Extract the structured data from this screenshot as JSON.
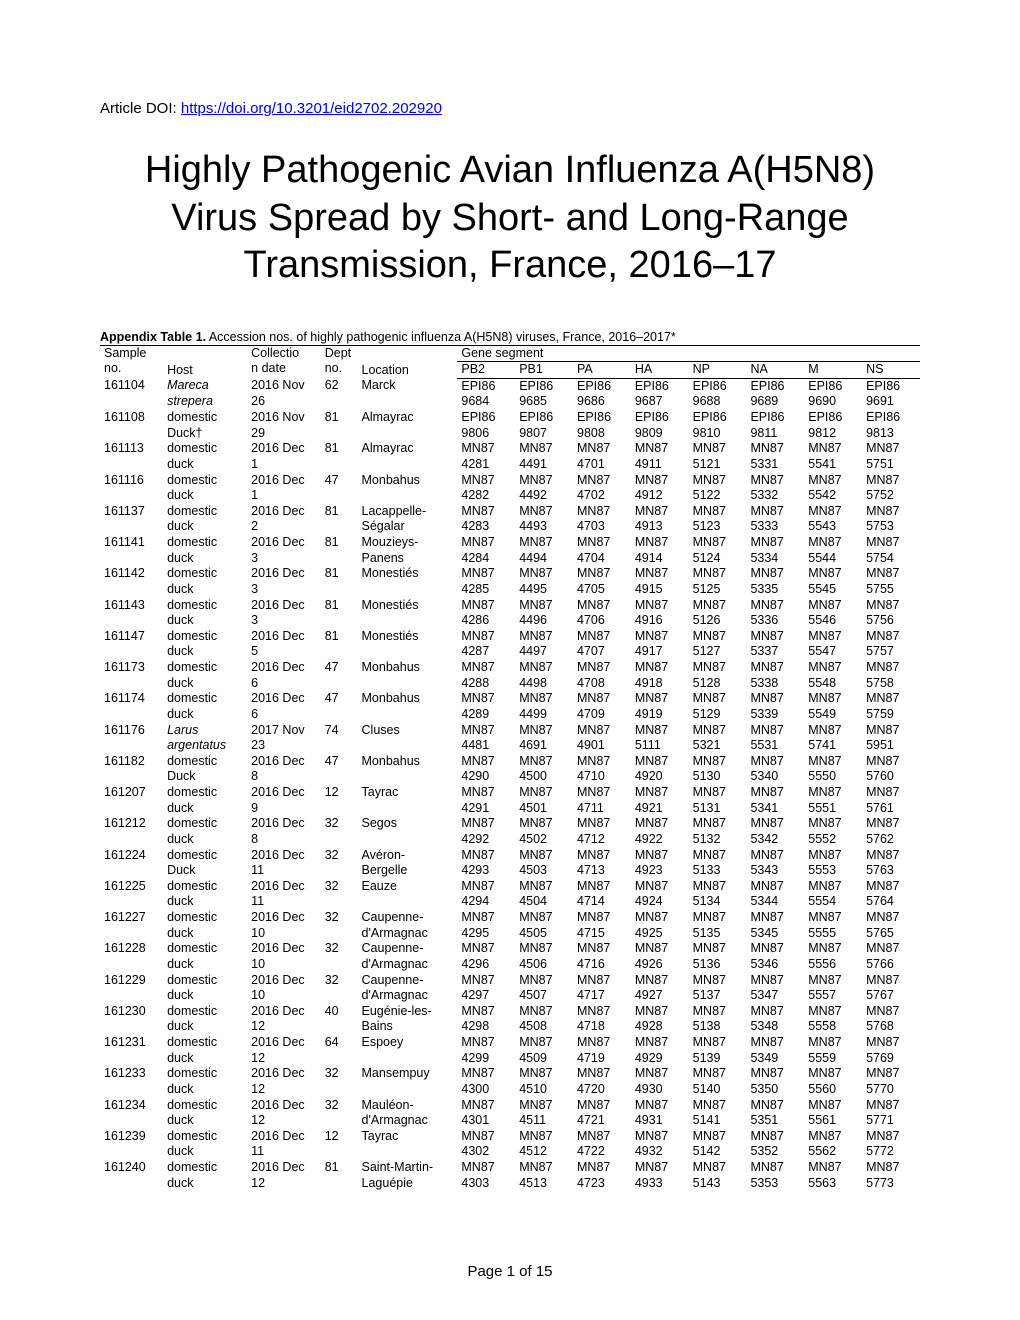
{
  "doi_label": "Article DOI:",
  "doi_link_text": "https://doi.org/10.3201/eid2702.202920",
  "title": "Highly Pathogenic Avian Influenza A(H5N8) Virus Spread by Short- and Long-Range Transmission, France, 2016–17",
  "caption_bold": "Appendix Table 1.",
  "caption_rest": " Accession nos. of highly pathogenic influenza A(H5N8) viruses, France, 2016–2017*",
  "group_headers": {
    "sample": "Sample no.",
    "host": "Host",
    "date": "Collection date",
    "dept": "Dept no.",
    "location": "Location",
    "segment": "Gene segment"
  },
  "segment_cols": [
    "PB2",
    "PB1",
    "PA",
    "HA",
    "NP",
    "NA",
    "M",
    "NS"
  ],
  "page_label": "Page 1 of 15",
  "rows": [
    {
      "sample": "161104",
      "host_l1": "Mareca",
      "host_l2": "strepera",
      "host_italic": true,
      "date_l1": "2016 Nov",
      "date_l2": "26",
      "dept": "62",
      "loc_l1": "Marck",
      "loc_l2": "",
      "pref": "EPI86",
      "seg_l2": [
        "9684",
        "9685",
        "9686",
        "9687",
        "9688",
        "9689",
        "9690",
        "9691"
      ]
    },
    {
      "sample": "161108",
      "host_l1": "domestic",
      "host_l2": "Duck†",
      "host_italic": false,
      "date_l1": "2016 Nov",
      "date_l2": "29",
      "dept": "81",
      "loc_l1": "Almayrac",
      "loc_l2": "",
      "pref": "EPI86",
      "seg_l2": [
        "9806",
        "9807",
        "9808",
        "9809",
        "9810",
        "9811",
        "9812",
        "9813"
      ]
    },
    {
      "sample": "161113",
      "host_l1": "domestic",
      "host_l2": "duck",
      "host_italic": false,
      "date_l1": "2016 Dec",
      "date_l2": "1",
      "dept": "81",
      "loc_l1": "Almayrac",
      "loc_l2": "",
      "pref": "MN87",
      "seg_l2": [
        "4281",
        "4491",
        "4701",
        "4911",
        "5121",
        "5331",
        "5541",
        "5751"
      ]
    },
    {
      "sample": "161116",
      "host_l1": "domestic",
      "host_l2": "duck",
      "host_italic": false,
      "date_l1": "2016 Dec",
      "date_l2": "1",
      "dept": "47",
      "loc_l1": "Monbahus",
      "loc_l2": "",
      "pref": "MN87",
      "seg_l2": [
        "4282",
        "4492",
        "4702",
        "4912",
        "5122",
        "5332",
        "5542",
        "5752"
      ]
    },
    {
      "sample": "161137",
      "host_l1": "domestic",
      "host_l2": "duck",
      "host_italic": false,
      "date_l1": "2016 Dec",
      "date_l2": "2",
      "dept": "81",
      "loc_l1": "Lacappelle-",
      "loc_l2": "Ségalar",
      "pref": "MN87",
      "seg_l2": [
        "4283",
        "4493",
        "4703",
        "4913",
        "5123",
        "5333",
        "5543",
        "5753"
      ]
    },
    {
      "sample": "161141",
      "host_l1": "domestic",
      "host_l2": "duck",
      "host_italic": false,
      "date_l1": "2016 Dec",
      "date_l2": "3",
      "dept": "81",
      "loc_l1": "Mouzieys-",
      "loc_l2": "Panens",
      "pref": "MN87",
      "seg_l2": [
        "4284",
        "4494",
        "4704",
        "4914",
        "5124",
        "5334",
        "5544",
        "5754"
      ]
    },
    {
      "sample": "161142",
      "host_l1": "domestic",
      "host_l2": "duck",
      "host_italic": false,
      "date_l1": "2016 Dec",
      "date_l2": "3",
      "dept": "81",
      "loc_l1": "Monestiés",
      "loc_l2": "",
      "pref": "MN87",
      "seg_l2": [
        "4285",
        "4495",
        "4705",
        "4915",
        "5125",
        "5335",
        "5545",
        "5755"
      ]
    },
    {
      "sample": "161143",
      "host_l1": "domestic",
      "host_l2": "duck",
      "host_italic": false,
      "date_l1": "2016 Dec",
      "date_l2": "3",
      "dept": "81",
      "loc_l1": "Monestiés",
      "loc_l2": "",
      "pref": "MN87",
      "seg_l2": [
        "4286",
        "4496",
        "4706",
        "4916",
        "5126",
        "5336",
        "5546",
        "5756"
      ]
    },
    {
      "sample": "161147",
      "host_l1": "domestic",
      "host_l2": "duck",
      "host_italic": false,
      "date_l1": "2016 Dec",
      "date_l2": "5",
      "dept": "81",
      "loc_l1": "Monestiés",
      "loc_l2": "",
      "pref": "MN87",
      "seg_l2": [
        "4287",
        "4497",
        "4707",
        "4917",
        "5127",
        "5337",
        "5547",
        "5757"
      ]
    },
    {
      "sample": "161173",
      "host_l1": "domestic",
      "host_l2": "duck",
      "host_italic": false,
      "date_l1": "2016 Dec",
      "date_l2": "6",
      "dept": "47",
      "loc_l1": "Monbahus",
      "loc_l2": "",
      "pref": "MN87",
      "seg_l2": [
        "4288",
        "4498",
        "4708",
        "4918",
        "5128",
        "5338",
        "5548",
        "5758"
      ]
    },
    {
      "sample": "161174",
      "host_l1": "domestic",
      "host_l2": "duck",
      "host_italic": false,
      "date_l1": "2016 Dec",
      "date_l2": "6",
      "dept": "47",
      "loc_l1": "Monbahus",
      "loc_l2": "",
      "pref": "MN87",
      "seg_l2": [
        "4289",
        "4499",
        "4709",
        "4919",
        "5129",
        "5339",
        "5549",
        "5759"
      ]
    },
    {
      "sample": "161176",
      "host_l1": "Larus",
      "host_l2": "argentatus",
      "host_italic": true,
      "date_l1": "2017 Nov",
      "date_l2": "23",
      "dept": "74",
      "loc_l1": "Cluses",
      "loc_l2": "",
      "pref": "MN87",
      "seg_l2": [
        "4481",
        "4691",
        "4901",
        "5111",
        "5321",
        "5531",
        "5741",
        "5951"
      ]
    },
    {
      "sample": "161182",
      "host_l1": "domestic",
      "host_l2": "Duck",
      "host_italic": false,
      "date_l1": "2016 Dec",
      "date_l2": "8",
      "dept": "47",
      "loc_l1": "Monbahus",
      "loc_l2": "",
      "pref": "MN87",
      "seg_l2": [
        "4290",
        "4500",
        "4710",
        "4920",
        "5130",
        "5340",
        "5550",
        "5760"
      ]
    },
    {
      "sample": "161207",
      "host_l1": "domestic",
      "host_l2": "duck",
      "host_italic": false,
      "date_l1": "2016 Dec",
      "date_l2": "9",
      "dept": "12",
      "loc_l1": "Tayrac",
      "loc_l2": "",
      "pref": "MN87",
      "seg_l2": [
        "4291",
        "4501",
        "4711",
        "4921",
        "5131",
        "5341",
        "5551",
        "5761"
      ]
    },
    {
      "sample": "161212",
      "host_l1": "domestic",
      "host_l2": "duck",
      "host_italic": false,
      "date_l1": "2016 Dec",
      "date_l2": "8",
      "dept": "32",
      "loc_l1": "Segos",
      "loc_l2": "",
      "pref": "MN87",
      "seg_l2": [
        "4292",
        "4502",
        "4712",
        "4922",
        "5132",
        "5342",
        "5552",
        "5762"
      ]
    },
    {
      "sample": "161224",
      "host_l1": "domestic",
      "host_l2": "Duck",
      "host_italic": false,
      "date_l1": "2016 Dec",
      "date_l2": "11",
      "dept": "32",
      "loc_l1": "Avéron-",
      "loc_l2": "Bergelle",
      "pref": "MN87",
      "seg_l2": [
        "4293",
        "4503",
        "4713",
        "4923",
        "5133",
        "5343",
        "5553",
        "5763"
      ]
    },
    {
      "sample": "161225",
      "host_l1": "domestic",
      "host_l2": "duck",
      "host_italic": false,
      "date_l1": "2016 Dec",
      "date_l2": "11",
      "dept": "32",
      "loc_l1": "Eauze",
      "loc_l2": "",
      "pref": "MN87",
      "seg_l2": [
        "4294",
        "4504",
        "4714",
        "4924",
        "5134",
        "5344",
        "5554",
        "5764"
      ]
    },
    {
      "sample": "161227",
      "host_l1": "domestic",
      "host_l2": "duck",
      "host_italic": false,
      "date_l1": "2016 Dec",
      "date_l2": "10",
      "dept": "32",
      "loc_l1": "Caupenne-",
      "loc_l2": "d'Armagnac",
      "pref": "MN87",
      "seg_l2": [
        "4295",
        "4505",
        "4715",
        "4925",
        "5135",
        "5345",
        "5555",
        "5765"
      ]
    },
    {
      "sample": "161228",
      "host_l1": "domestic",
      "host_l2": "duck",
      "host_italic": false,
      "date_l1": "2016 Dec",
      "date_l2": "10",
      "dept": "32",
      "loc_l1": "Caupenne-",
      "loc_l2": "d'Armagnac",
      "pref": "MN87",
      "seg_l2": [
        "4296",
        "4506",
        "4716",
        "4926",
        "5136",
        "5346",
        "5556",
        "5766"
      ]
    },
    {
      "sample": "161229",
      "host_l1": "domestic",
      "host_l2": "duck",
      "host_italic": false,
      "date_l1": "2016 Dec",
      "date_l2": "10",
      "dept": "32",
      "loc_l1": "Caupenne-",
      "loc_l2": "d'Armagnac",
      "pref": "MN87",
      "seg_l2": [
        "4297",
        "4507",
        "4717",
        "4927",
        "5137",
        "5347",
        "5557",
        "5767"
      ]
    },
    {
      "sample": "161230",
      "host_l1": "domestic",
      "host_l2": "duck",
      "host_italic": false,
      "date_l1": "2016 Dec",
      "date_l2": "12",
      "dept": "40",
      "loc_l1": "Eugénie-les-",
      "loc_l2": "Bains",
      "pref": "MN87",
      "seg_l2": [
        "4298",
        "4508",
        "4718",
        "4928",
        "5138",
        "5348",
        "5558",
        "5768"
      ]
    },
    {
      "sample": "161231",
      "host_l1": "domestic",
      "host_l2": "duck",
      "host_italic": false,
      "date_l1": "2016 Dec",
      "date_l2": "12",
      "dept": "64",
      "loc_l1": "Espoey",
      "loc_l2": "",
      "pref": "MN87",
      "seg_l2": [
        "4299",
        "4509",
        "4719",
        "4929",
        "5139",
        "5349",
        "5559",
        "5769"
      ]
    },
    {
      "sample": "161233",
      "host_l1": "domestic",
      "host_l2": "duck",
      "host_italic": false,
      "date_l1": "2016 Dec",
      "date_l2": "12",
      "dept": "32",
      "loc_l1": "Mansempuy",
      "loc_l2": "",
      "pref": "MN87",
      "seg_l2": [
        "4300",
        "4510",
        "4720",
        "4930",
        "5140",
        "5350",
        "5560",
        "5770"
      ]
    },
    {
      "sample": "161234",
      "host_l1": "domestic",
      "host_l2": "duck",
      "host_italic": false,
      "date_l1": "2016 Dec",
      "date_l2": "12",
      "dept": "32",
      "loc_l1": "Mauléon-",
      "loc_l2": "d'Armagnac",
      "pref": "MN87",
      "seg_l2": [
        "4301",
        "4511",
        "4721",
        "4931",
        "5141",
        "5351",
        "5561",
        "5771"
      ]
    },
    {
      "sample": "161239",
      "host_l1": "domestic",
      "host_l2": "duck",
      "host_italic": false,
      "date_l1": "2016 Dec",
      "date_l2": "11",
      "dept": "12",
      "loc_l1": "Tayrac",
      "loc_l2": "",
      "pref": "MN87",
      "seg_l2": [
        "4302",
        "4512",
        "4722",
        "4932",
        "5142",
        "5352",
        "5562",
        "5772"
      ]
    },
    {
      "sample": "161240",
      "host_l1": "domestic",
      "host_l2": "duck",
      "host_italic": false,
      "date_l1": "2016 Dec",
      "date_l2": "12",
      "dept": "81",
      "loc_l1": "Saint-Martin-",
      "loc_l2": "Laguépie",
      "pref": "MN87",
      "seg_l2": [
        "4303",
        "4513",
        "4723",
        "4933",
        "5143",
        "5353",
        "5563",
        "5773"
      ]
    }
  ]
}
